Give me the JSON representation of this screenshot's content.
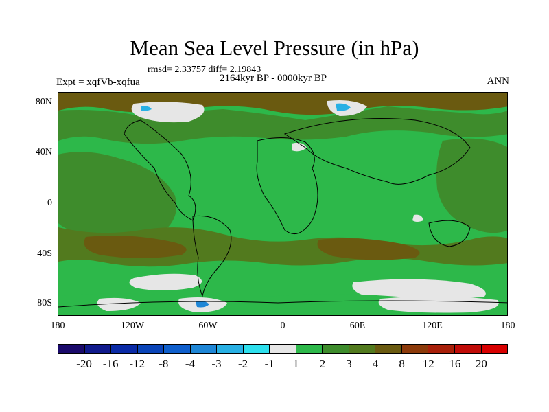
{
  "title": "Mean Sea Level Pressure (in hPa)",
  "stats": "rmsd= 2.33757 diff= 2.19843",
  "expt": "Expt = xqfVb-xqfua",
  "period": "2164kyr BP - 0000kyr BP",
  "season": "ANN",
  "lat_labels": [
    "80N",
    "40N",
    "0",
    "40S",
    "80S"
  ],
  "lon_labels": [
    "180",
    "120W",
    "60W",
    "0",
    "60E",
    "120E",
    "180"
  ],
  "colorbar": {
    "labels": [
      "-20",
      "-16",
      "-12",
      "-8",
      "-4",
      "-3",
      "-2",
      "-1",
      "1",
      "2",
      "3",
      "4",
      "8",
      "12",
      "16",
      "20"
    ],
    "colors": [
      "#1a0a6b",
      "#101a8c",
      "#0a2aa6",
      "#0a44b8",
      "#0f5fcc",
      "#1e86d6",
      "#28b0e4",
      "#2ee0ee",
      "#e6e6e6",
      "#2db84a",
      "#3e8c2c",
      "#527a1e",
      "#6a5a10",
      "#8c3a0a",
      "#a8200a",
      "#c00c08",
      "#d80000"
    ]
  },
  "map_colors": {
    "green": "#2db84a",
    "dark_green": "#3e8c2c",
    "olive": "#527a1e",
    "brown": "#6a5a10",
    "white": "#e6e6e6",
    "cyan": "#28b0e4",
    "blue": "#1e86d6"
  }
}
